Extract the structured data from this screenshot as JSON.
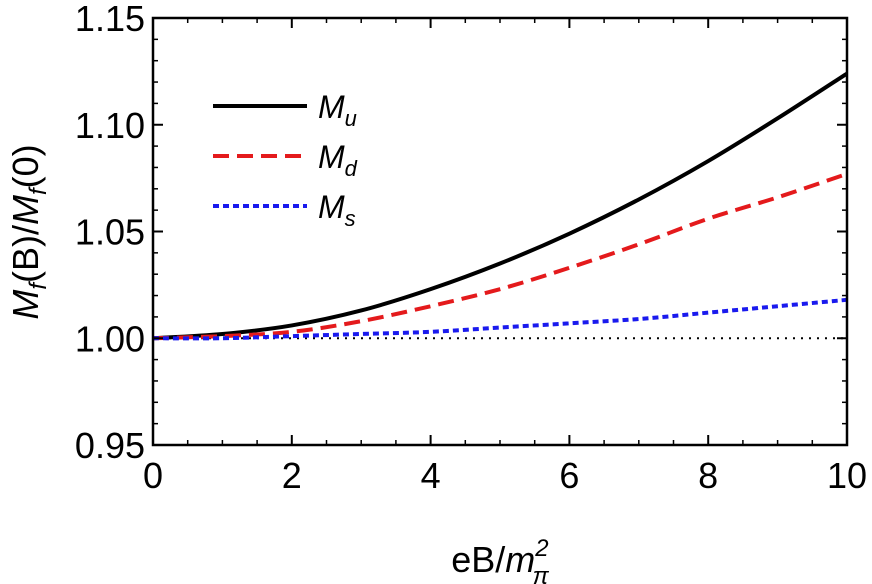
{
  "chart_data": {
    "type": "line",
    "xlabel": {
      "main": "eB/",
      "var": "m",
      "sup": "2",
      "sub": "π"
    },
    "ylabel": {
      "var1": "M",
      "sub1": "f",
      "mid": "(B)/",
      "var2": "M",
      "sub2": "f",
      "tail": "(0)"
    },
    "xlim": [
      0,
      10
    ],
    "ylim": [
      0.95,
      1.15
    ],
    "xticks": [
      0,
      2,
      4,
      6,
      8,
      10
    ],
    "xtick_labels": [
      "0",
      "2",
      "4",
      "6",
      "8",
      "10"
    ],
    "yticks": [
      0.95,
      1.0,
      1.05,
      1.1,
      1.15
    ],
    "ytick_labels": [
      "0.95",
      "1.00",
      "1.05",
      "1.10",
      "1.15"
    ],
    "reference_line": {
      "y": 1.0,
      "style": "dotted",
      "color": "#000000"
    },
    "legend_position": "top-left",
    "x": [
      0,
      1,
      2,
      3,
      4,
      5,
      6,
      7,
      8,
      9,
      10
    ],
    "series": [
      {
        "name": "M",
        "name_sub": "u",
        "color": "#000000",
        "dash": "solid",
        "values": [
          1.0,
          1.002,
          1.006,
          1.013,
          1.023,
          1.035,
          1.049,
          1.065,
          1.083,
          1.103,
          1.124
        ]
      },
      {
        "name": "M",
        "name_sub": "d",
        "color": "#e41a1c",
        "dash": "dashed",
        "values": [
          1.0,
          1.001,
          1.003,
          1.008,
          1.015,
          1.023,
          1.033,
          1.044,
          1.056,
          1.066,
          1.077
        ]
      },
      {
        "name": "M",
        "name_sub": "s",
        "color": "#1a1aee",
        "dash": "dotted",
        "values": [
          1.0,
          1.0,
          1.001,
          1.002,
          1.003,
          1.005,
          1.007,
          1.009,
          1.012,
          1.015,
          1.018
        ]
      }
    ]
  }
}
